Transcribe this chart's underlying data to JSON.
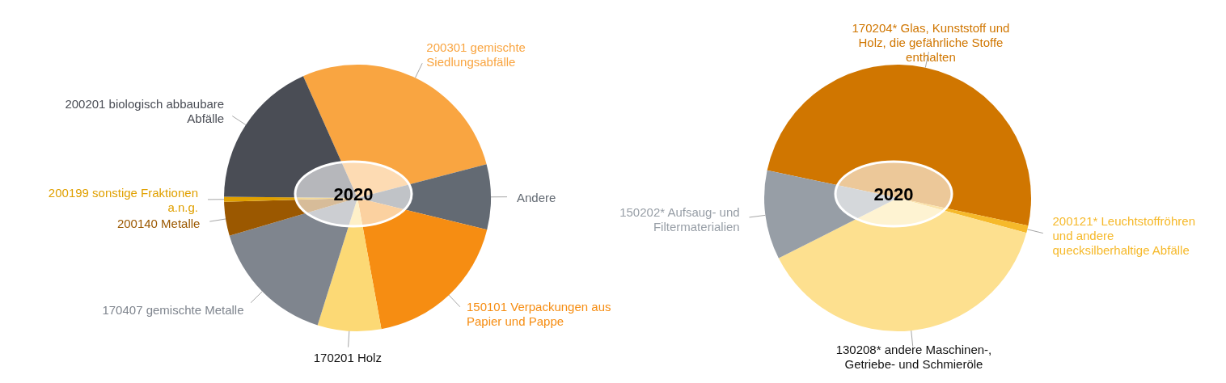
{
  "chart_data": [
    {
      "type": "pie",
      "title": "2020",
      "categories": [
        "200301 gemischte Siedlungsabfälle",
        "Andere",
        "150101 Verpackungen aus Papier und Pappe",
        "170201 Holz",
        "170407 gemischte Metalle",
        "200140 Metalle",
        "200199 sonstige Fraktionen a.n.g.",
        "200201 biologisch abbaubare Abfälle"
      ],
      "values": [
        27.6,
        7.9,
        18.3,
        7.7,
        15.6,
        4.1,
        0.6,
        18.2
      ],
      "colors": [
        "#f9a541",
        "#636a73",
        "#f68d12",
        "#fcd975",
        "#7f858e",
        "#9b5800",
        "#e0a000",
        "#4a4d55"
      ]
    },
    {
      "type": "pie",
      "title": "2020",
      "categories": [
        "170204* Glas, Kunststoff und Holz, die gefährliche Stoffe enthalten",
        "200121* Leuchtstoffröhren und andere quecksilberhaltige Abfälle",
        "130208* andere Maschinen-, Getriebe- und Schmieröle",
        "150202* Aufsaug- und Filtermaterialien"
      ],
      "values": [
        50,
        0.9,
        38.3,
        10.8
      ],
      "colors": [
        "#d07600",
        "#f6b92a",
        "#fde08f",
        "#979ea6"
      ]
    }
  ]
}
